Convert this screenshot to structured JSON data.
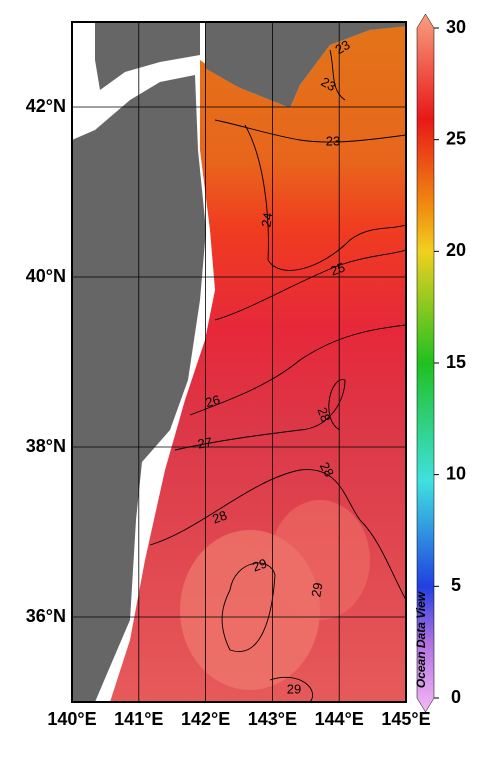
{
  "map": {
    "xlim": [
      140,
      145
    ],
    "ylim": [
      35,
      43
    ],
    "xticks": [
      {
        "value": 140,
        "label": "140°E"
      },
      {
        "value": 141,
        "label": "141°E"
      },
      {
        "value": 142,
        "label": "142°E"
      },
      {
        "value": 143,
        "label": "143°E"
      },
      {
        "value": 144,
        "label": "144°E"
      },
      {
        "value": 145,
        "label": "145°E"
      }
    ],
    "yticks": [
      {
        "value": 36,
        "label": "36°N"
      },
      {
        "value": 38,
        "label": "38°N"
      },
      {
        "value": 40,
        "label": "40°N"
      },
      {
        "value": 42,
        "label": "42°N"
      }
    ],
    "contour_labels": [
      "23",
      "23",
      "23",
      "24",
      "25",
      "26",
      "27",
      "28",
      "28",
      "28",
      "29",
      "29",
      "29"
    ]
  },
  "colorbar": {
    "lim": [
      0,
      30
    ],
    "ticks": [
      0,
      5,
      10,
      15,
      20,
      25,
      30
    ]
  },
  "watermark": "Ocean Data View"
}
